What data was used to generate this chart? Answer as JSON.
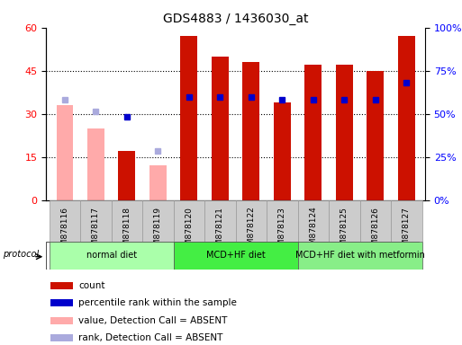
{
  "title": "GDS4883 / 1436030_at",
  "samples": [
    "GSM878116",
    "GSM878117",
    "GSM878118",
    "GSM878119",
    "GSM878120",
    "GSM878121",
    "GSM878122",
    "GSM878123",
    "GSM878124",
    "GSM878125",
    "GSM878126",
    "GSM878127"
  ],
  "count_present": [
    0,
    0,
    17,
    0,
    57,
    50,
    48,
    34,
    47,
    47,
    45,
    57
  ],
  "count_absent": [
    33,
    25,
    0,
    12,
    0,
    0,
    0,
    0,
    0,
    0,
    0,
    0
  ],
  "rank_present": [
    0,
    0,
    29,
    0,
    36,
    36,
    36,
    35,
    35,
    35,
    35,
    41
  ],
  "rank_absent": [
    35,
    31,
    0,
    17,
    0,
    0,
    0,
    0,
    0,
    0,
    0,
    0
  ],
  "absent_flags": [
    true,
    true,
    false,
    true,
    false,
    false,
    false,
    false,
    false,
    false,
    false,
    false
  ],
  "protocols": [
    {
      "label": "normal diet",
      "start": 0,
      "end": 4,
      "color": "#AAFFAA"
    },
    {
      "label": "MCD+HF diet",
      "start": 4,
      "end": 8,
      "color": "#44EE44"
    },
    {
      "label": "MCD+HF diet with metformin",
      "start": 8,
      "end": 12,
      "color": "#88EE88"
    }
  ],
  "ylim_left": [
    0,
    60
  ],
  "ylim_right": [
    0,
    100
  ],
  "yticks_left": [
    0,
    15,
    30,
    45,
    60
  ],
  "yticks_right": [
    0,
    25,
    50,
    75,
    100
  ],
  "ytick_labels_right": [
    "0%",
    "25%",
    "50%",
    "75%",
    "100%"
  ],
  "bar_color_red": "#CC1100",
  "bar_color_pink": "#FFAAAA",
  "dot_color_blue": "#0000CC",
  "dot_color_lightblue": "#AAAADD",
  "bg_color": "#FFFFFF",
  "legend_items": [
    {
      "color": "#CC1100",
      "label": "count"
    },
    {
      "color": "#0000CC",
      "label": "percentile rank within the sample"
    },
    {
      "color": "#FFAAAA",
      "label": "value, Detection Call = ABSENT"
    },
    {
      "color": "#AAAADD",
      "label": "rank, Detection Call = ABSENT"
    }
  ]
}
